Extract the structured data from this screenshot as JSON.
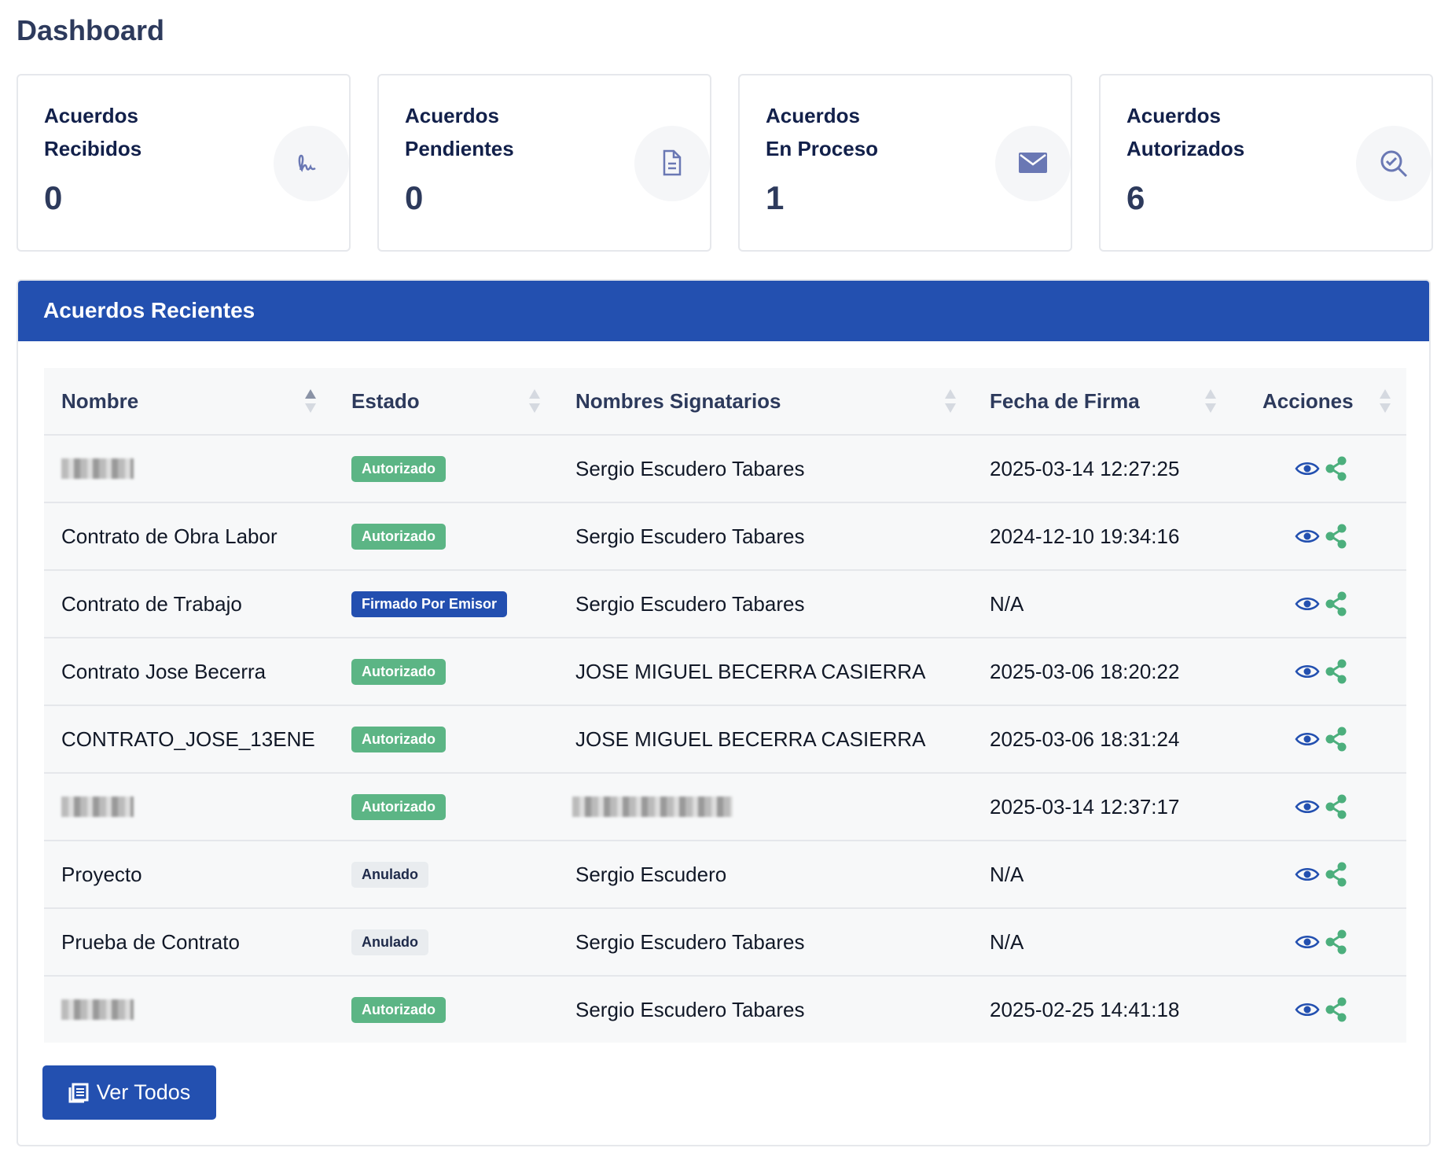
{
  "header": {
    "title": "Dashboard"
  },
  "cards": [
    {
      "line1": "Acuerdos",
      "line2": "Recibidos",
      "value": 0
    },
    {
      "line1": "Acuerdos",
      "line2": "Pendientes",
      "value": 0
    },
    {
      "line1": "Acuerdos",
      "line2": "En Proceso",
      "value": 1
    },
    {
      "line1": "Acuerdos",
      "line2": "Autorizados",
      "value": 6
    }
  ],
  "table": {
    "title": "Acuerdos Recientes",
    "columns": [
      "Nombre",
      "Estado",
      "Nombres Signatarios",
      "Fecha de Firma",
      "Acciones"
    ],
    "rows": [
      {
        "nombre": null,
        "estado": "Autorizado",
        "estado_color": "#5cb585",
        "estado_text_color": "#ffffff",
        "signatarios": "Sergio Escudero Tabares",
        "fecha": "2025-03-14 12:27:25"
      },
      {
        "nombre": "Contrato de Obra Labor",
        "estado": "Autorizado",
        "estado_color": "#5cb585",
        "estado_text_color": "#ffffff",
        "signatarios": "Sergio Escudero Tabares",
        "fecha": "2024-12-10 19:34:16"
      },
      {
        "nombre": "Contrato de Trabajo",
        "estado": "Firmado Por Emisor",
        "estado_color": "#234fb0",
        "estado_text_color": "#ffffff",
        "signatarios": "Sergio Escudero Tabares",
        "fecha": "N/A"
      },
      {
        "nombre": "Contrato Jose Becerra",
        "estado": "Autorizado",
        "estado_color": "#5cb585",
        "estado_text_color": "#ffffff",
        "signatarios": "JOSE MIGUEL BECERRA CASIERRA",
        "fecha": "2025-03-06 18:20:22"
      },
      {
        "nombre": "CONTRATO_JOSE_13ENE",
        "estado": "Autorizado",
        "estado_color": "#5cb585",
        "estado_text_color": "#ffffff",
        "signatarios": "JOSE MIGUEL BECERRA CASIERRA",
        "fecha": "2025-03-06 18:31:24"
      },
      {
        "nombre": null,
        "estado": "Autorizado",
        "estado_color": "#5cb585",
        "estado_text_color": "#ffffff",
        "signatarios": null,
        "fecha": "2025-03-14 12:37:17"
      },
      {
        "nombre": "Proyecto",
        "estado": "Anulado",
        "estado_color": "#e9ecef",
        "estado_text_color": "#1e2a4a",
        "signatarios": "Sergio Escudero",
        "fecha": "N/A"
      },
      {
        "nombre": "Prueba de Contrato",
        "estado": "Anulado",
        "estado_color": "#e9ecef",
        "estado_text_color": "#1e2a4a",
        "signatarios": "Sergio Escudero Tabares",
        "fecha": "N/A"
      },
      {
        "nombre": null,
        "estado": "Autorizado",
        "estado_color": "#5cb585",
        "estado_text_color": "#ffffff",
        "signatarios": "Sergio Escudero Tabares",
        "fecha": "2025-02-25 14:41:18"
      }
    ]
  },
  "button": {
    "label": "Ver Todos"
  }
}
